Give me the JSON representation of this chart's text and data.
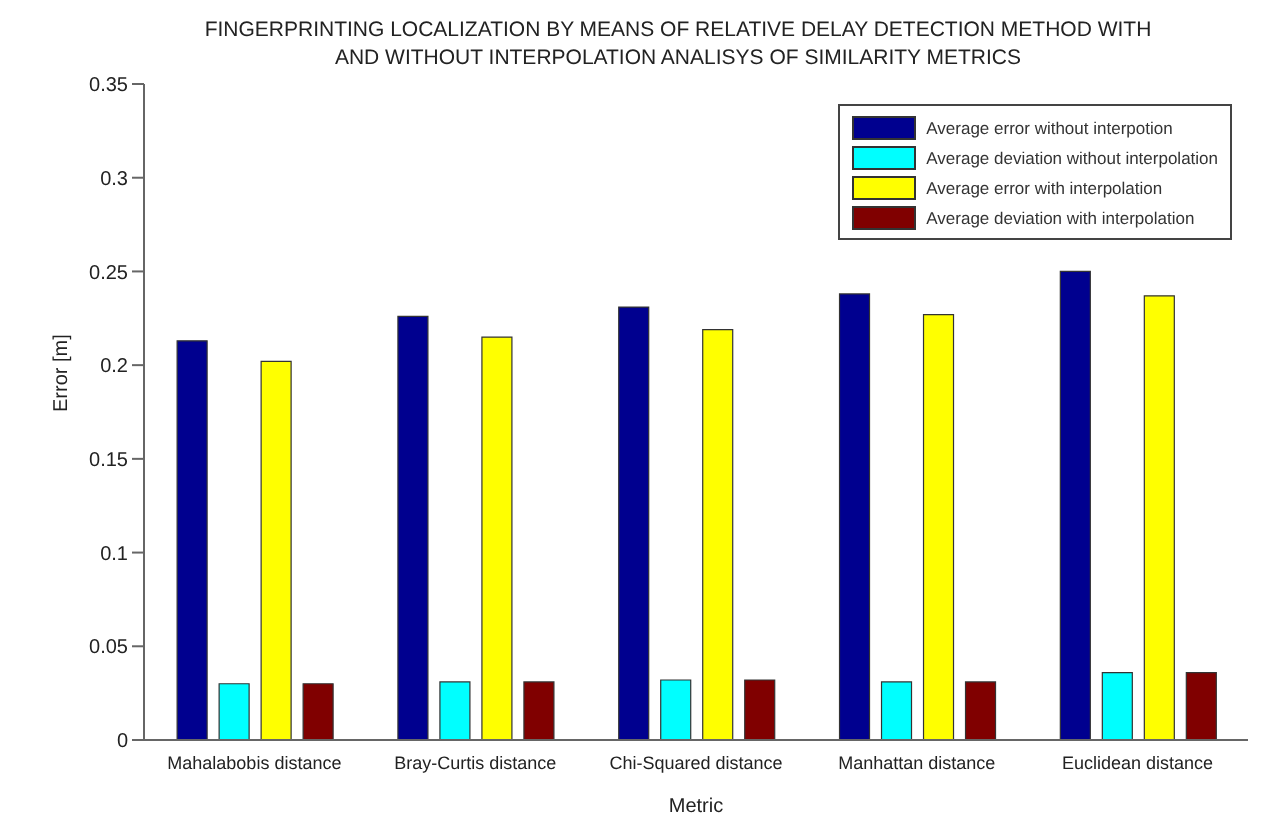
{
  "chart_data": {
    "type": "bar",
    "title": "FINGERPRINTING LOCALIZATION BY MEANS OF RELATIVE DELAY DETECTION METHOD WITH\nAND WITHOUT INTERPOLATION ANALISYS OF SIMILARITY METRICS",
    "xlabel": "Metric",
    "ylabel": "Error [m]",
    "categories": [
      "Mahalabobis distance",
      "Bray-Curtis distance",
      "Chi-Squared distance",
      "Manhattan distance",
      "Euclidean distance"
    ],
    "series": [
      {
        "name": "Average error without interpotion",
        "color": "#00008f",
        "values": [
          0.213,
          0.226,
          0.231,
          0.238,
          0.25
        ]
      },
      {
        "name": "Average deviation without interpolation",
        "color": "#00ffff",
        "values": [
          0.03,
          0.031,
          0.032,
          0.031,
          0.036
        ]
      },
      {
        "name": "Average error with interpolation",
        "color": "#ffff00",
        "values": [
          0.202,
          0.215,
          0.219,
          0.227,
          0.237
        ]
      },
      {
        "name": "Average deviation with interpolation",
        "color": "#800000",
        "values": [
          0.03,
          0.031,
          0.032,
          0.031,
          0.036
        ]
      }
    ],
    "ylim": [
      0,
      0.35
    ],
    "yticks": [
      0,
      0.05,
      0.1,
      0.15,
      0.2,
      0.25,
      0.3,
      0.35
    ],
    "grid": false,
    "legend": "top right"
  }
}
